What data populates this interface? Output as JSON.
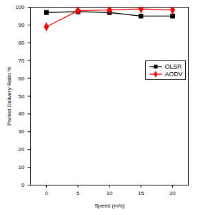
{
  "chart_data": {
    "type": "line",
    "x_label": "Speed (m/s)",
    "y_label": "Packet Delivery Ratio %",
    "x": [
      0,
      5,
      10,
      15,
      20
    ],
    "series": [
      {
        "name": "OLSR",
        "color": "#000000",
        "marker": "square",
        "values": [
          97,
          97.5,
          97,
          95,
          95
        ]
      },
      {
        "name": "AODV",
        "color": "#ff0000",
        "marker": "diamond",
        "values": [
          89,
          98,
          98.5,
          99,
          98.5
        ]
      }
    ],
    "xlim": [
      -2.5,
      22.5
    ],
    "xticks": [
      0,
      5,
      10,
      15,
      20
    ],
    "ylim": [
      0,
      100
    ],
    "yticks": [
      0,
      10,
      20,
      30,
      40,
      50,
      60,
      70,
      80,
      90,
      100
    ],
    "grid": false,
    "legend": "upper right"
  }
}
